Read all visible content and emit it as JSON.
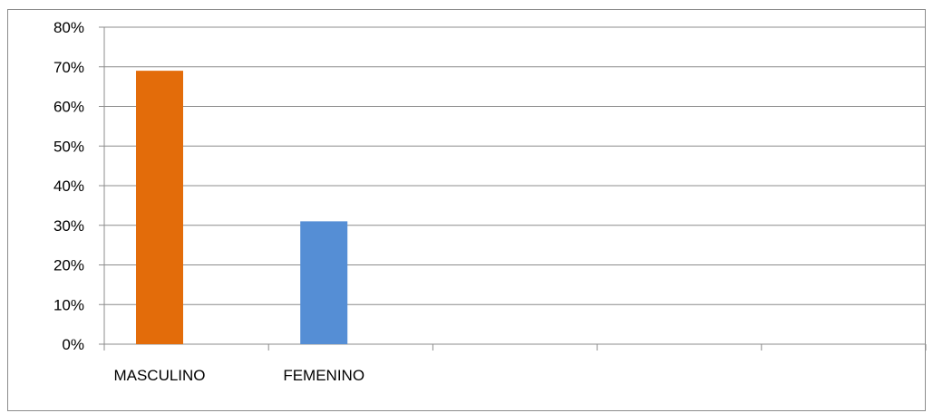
{
  "chart_data": {
    "type": "bar",
    "categories": [
      "MASCULINO",
      "FEMENINO",
      "",
      "",
      ""
    ],
    "values": [
      69,
      31,
      null,
      null,
      null
    ],
    "bar_colors": [
      "#e36c0a",
      "#558ed5"
    ],
    "yticks": [
      "0%",
      "10%",
      "20%",
      "30%",
      "40%",
      "50%",
      "60%",
      "70%",
      "80%"
    ],
    "ylim": [
      0,
      80
    ],
    "y_unit": "%",
    "grid": true,
    "legend": "none",
    "title": "",
    "xlabel": "",
    "ylabel": ""
  }
}
